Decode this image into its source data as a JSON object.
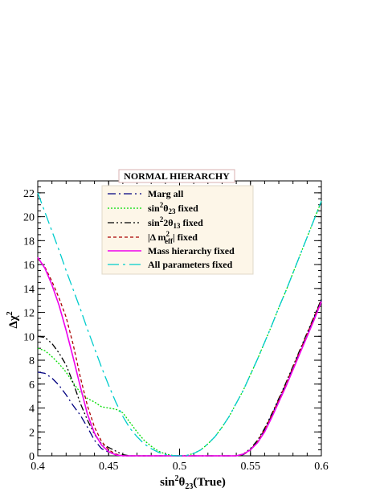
{
  "chart_data": {
    "type": "line",
    "title": "NORMAL HIERARCHY",
    "xlabel": "sin²θ₂₃(True)",
    "ylabel": "Δχ²",
    "xlim": [
      0.4,
      0.6
    ],
    "ylim": [
      0,
      23
    ],
    "xticks": [
      "0.4",
      "0.45",
      "0.5",
      "0.55",
      "0.6"
    ],
    "yticks": [
      "0",
      "2",
      "4",
      "6",
      "8",
      "10",
      "12",
      "14",
      "16",
      "18",
      "20",
      "22"
    ],
    "legend_position": "top-center",
    "series": [
      {
        "name": "Marg all",
        "color": "#000080",
        "dash": "dash-dot",
        "points": [
          [
            0.4,
            7.0
          ],
          [
            0.405,
            6.9
          ],
          [
            0.41,
            6.5
          ],
          [
            0.415,
            5.9
          ],
          [
            0.42,
            5.1
          ],
          [
            0.425,
            4.2
          ],
          [
            0.43,
            3.4
          ],
          [
            0.435,
            2.4
          ],
          [
            0.44,
            1.3
          ],
          [
            0.445,
            0.6
          ],
          [
            0.45,
            0.3
          ],
          [
            0.455,
            0.1
          ],
          [
            0.46,
            0.0
          ],
          [
            0.5,
            0.0
          ],
          [
            0.54,
            0.0
          ],
          [
            0.545,
            0.1
          ],
          [
            0.55,
            0.5
          ],
          [
            0.555,
            1.2
          ],
          [
            0.56,
            2.2
          ],
          [
            0.565,
            3.4
          ],
          [
            0.57,
            4.7
          ],
          [
            0.575,
            6.0
          ],
          [
            0.58,
            7.4
          ],
          [
            0.585,
            8.8
          ],
          [
            0.59,
            10.2
          ],
          [
            0.595,
            11.6
          ],
          [
            0.6,
            13.0
          ]
        ]
      },
      {
        "name": "sin²θ₂₃ fixed",
        "color": "#00dd00",
        "dash": "dotted",
        "points": [
          [
            0.4,
            9.0
          ],
          [
            0.405,
            8.8
          ],
          [
            0.41,
            8.3
          ],
          [
            0.415,
            7.7
          ],
          [
            0.42,
            7.0
          ],
          [
            0.425,
            6.1
          ],
          [
            0.43,
            5.3
          ],
          [
            0.435,
            4.8
          ],
          [
            0.44,
            4.5
          ],
          [
            0.445,
            4.1
          ],
          [
            0.45,
            4.0
          ],
          [
            0.455,
            3.9
          ],
          [
            0.46,
            3.6
          ],
          [
            0.465,
            2.8
          ],
          [
            0.47,
            2.0
          ],
          [
            0.475,
            1.3
          ],
          [
            0.48,
            0.8
          ],
          [
            0.485,
            0.4
          ],
          [
            0.49,
            0.15
          ],
          [
            0.495,
            0.03
          ],
          [
            0.5,
            0.0
          ],
          [
            0.505,
            0.03
          ],
          [
            0.51,
            0.2
          ],
          [
            0.515,
            0.5
          ],
          [
            0.52,
            1.0
          ],
          [
            0.525,
            1.6
          ],
          [
            0.53,
            2.4
          ],
          [
            0.535,
            3.3
          ],
          [
            0.54,
            4.4
          ],
          [
            0.545,
            5.5
          ],
          [
            0.55,
            6.8
          ],
          [
            0.555,
            8.1
          ],
          [
            0.56,
            9.5
          ],
          [
            0.565,
            10.9
          ],
          [
            0.57,
            12.4
          ],
          [
            0.575,
            13.8
          ],
          [
            0.58,
            15.3
          ],
          [
            0.585,
            16.8
          ],
          [
            0.59,
            18.3
          ],
          [
            0.595,
            19.8
          ],
          [
            0.6,
            21.3
          ]
        ]
      },
      {
        "name": "sin²2θ₁₃ fixed",
        "color": "#000000",
        "dash": "dash-dot-dot",
        "points": [
          [
            0.4,
            10.0
          ],
          [
            0.405,
            9.9
          ],
          [
            0.41,
            9.4
          ],
          [
            0.415,
            8.6
          ],
          [
            0.42,
            7.6
          ],
          [
            0.425,
            6.1
          ],
          [
            0.43,
            4.4
          ],
          [
            0.435,
            3.0
          ],
          [
            0.44,
            1.8
          ],
          [
            0.445,
            1.0
          ],
          [
            0.45,
            0.7
          ],
          [
            0.455,
            0.4
          ],
          [
            0.46,
            0.1
          ],
          [
            0.465,
            0.0
          ],
          [
            0.5,
            0.0
          ],
          [
            0.54,
            0.0
          ],
          [
            0.545,
            0.15
          ],
          [
            0.55,
            0.6
          ],
          [
            0.555,
            1.3
          ],
          [
            0.56,
            2.3
          ],
          [
            0.565,
            3.5
          ],
          [
            0.57,
            4.8
          ],
          [
            0.575,
            6.1
          ],
          [
            0.58,
            7.5
          ],
          [
            0.585,
            8.9
          ],
          [
            0.59,
            10.3
          ],
          [
            0.595,
            11.7
          ],
          [
            0.6,
            13.1
          ]
        ]
      },
      {
        "name": "|Δ m²eff| fixed",
        "color": "#aa0000",
        "dash": "dashed",
        "points": [
          [
            0.4,
            16.5
          ],
          [
            0.405,
            15.8
          ],
          [
            0.41,
            14.6
          ],
          [
            0.415,
            13.2
          ],
          [
            0.42,
            11.6
          ],
          [
            0.425,
            9.3
          ],
          [
            0.43,
            6.6
          ],
          [
            0.435,
            4.2
          ],
          [
            0.44,
            2.4
          ],
          [
            0.445,
            1.2
          ],
          [
            0.45,
            0.5
          ],
          [
            0.455,
            0.15
          ],
          [
            0.46,
            0.0
          ],
          [
            0.5,
            0.0
          ],
          [
            0.54,
            0.0
          ],
          [
            0.545,
            0.1
          ],
          [
            0.55,
            0.5
          ],
          [
            0.555,
            1.2
          ],
          [
            0.56,
            2.2
          ],
          [
            0.565,
            3.4
          ],
          [
            0.57,
            4.7
          ],
          [
            0.575,
            6.0
          ],
          [
            0.58,
            7.4
          ],
          [
            0.585,
            8.8
          ],
          [
            0.59,
            10.2
          ],
          [
            0.595,
            11.6
          ],
          [
            0.6,
            13.0
          ]
        ]
      },
      {
        "name": "Mass hierarchy fixed",
        "color": "#ee00ee",
        "dash": "solid",
        "points": [
          [
            0.4,
            16.6
          ],
          [
            0.405,
            15.7
          ],
          [
            0.41,
            14.3
          ],
          [
            0.415,
            12.6
          ],
          [
            0.42,
            10.5
          ],
          [
            0.425,
            8.2
          ],
          [
            0.43,
            5.8
          ],
          [
            0.435,
            3.5
          ],
          [
            0.44,
            1.9
          ],
          [
            0.445,
            0.9
          ],
          [
            0.45,
            0.35
          ],
          [
            0.455,
            0.08
          ],
          [
            0.46,
            0.0
          ],
          [
            0.5,
            0.0
          ],
          [
            0.54,
            0.0
          ],
          [
            0.545,
            0.15
          ],
          [
            0.55,
            0.5
          ],
          [
            0.555,
            1.1
          ],
          [
            0.56,
            2.0
          ],
          [
            0.565,
            3.2
          ],
          [
            0.57,
            4.5
          ],
          [
            0.575,
            5.8
          ],
          [
            0.58,
            7.2
          ],
          [
            0.585,
            8.6
          ],
          [
            0.59,
            10.0
          ],
          [
            0.595,
            11.4
          ],
          [
            0.6,
            12.9
          ]
        ]
      },
      {
        "name": "All parameters fixed",
        "color": "#00cccc",
        "dash": "long-dash-dot",
        "points": [
          [
            0.4,
            22.0
          ],
          [
            0.405,
            20.4
          ],
          [
            0.41,
            18.8
          ],
          [
            0.415,
            17.2
          ],
          [
            0.42,
            15.5
          ],
          [
            0.425,
            13.9
          ],
          [
            0.43,
            12.3
          ],
          [
            0.435,
            10.6
          ],
          [
            0.44,
            9.0
          ],
          [
            0.445,
            7.4
          ],
          [
            0.45,
            5.9
          ],
          [
            0.455,
            4.5
          ],
          [
            0.46,
            3.3
          ],
          [
            0.465,
            2.3
          ],
          [
            0.47,
            1.6
          ],
          [
            0.475,
            1.0
          ],
          [
            0.48,
            0.6
          ],
          [
            0.485,
            0.3
          ],
          [
            0.49,
            0.1
          ],
          [
            0.495,
            0.02
          ],
          [
            0.5,
            0.0
          ],
          [
            0.505,
            0.03
          ],
          [
            0.51,
            0.2
          ],
          [
            0.515,
            0.5
          ],
          [
            0.52,
            1.0
          ],
          [
            0.525,
            1.6
          ],
          [
            0.53,
            2.4
          ],
          [
            0.535,
            3.3
          ],
          [
            0.54,
            4.4
          ],
          [
            0.545,
            5.5
          ],
          [
            0.55,
            6.8
          ],
          [
            0.555,
            8.1
          ],
          [
            0.56,
            9.5
          ],
          [
            0.565,
            10.9
          ],
          [
            0.57,
            12.4
          ],
          [
            0.575,
            13.8
          ],
          [
            0.58,
            15.3
          ],
          [
            0.585,
            16.8
          ],
          [
            0.59,
            18.3
          ],
          [
            0.595,
            19.8
          ],
          [
            0.6,
            21.3
          ]
        ]
      }
    ]
  },
  "legend_labels": {
    "marg_all": "Marg all",
    "s23_base": "sin",
    "s23_sup": "2",
    "s23_theta": "θ",
    "s23_sub": "23",
    "s23_tail": " fixed",
    "s13_base": "sin",
    "s13_sup": "2",
    "s13_mid": "2θ",
    "s13_sub": "13",
    "s13_tail": " fixed",
    "dm_base": "|Δ m",
    "dm_sup": "2",
    "dm_sub": "eff",
    "dm_tail": "| fixed",
    "mass_hier": "Mass hierarchy fixed",
    "all_params": "All parameters fixed"
  },
  "axis_text": {
    "x_base": "sin",
    "x_sup": "2",
    "x_theta": "θ",
    "x_sub": "23",
    "x_tail": "(True)",
    "y_base": "Δχ",
    "y_sup": "2"
  }
}
